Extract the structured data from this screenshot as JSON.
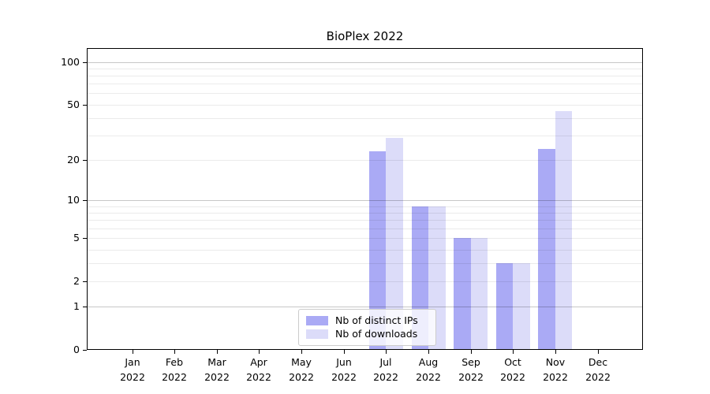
{
  "chart_data": {
    "type": "bar",
    "title": "BioPlex 2022",
    "categories": [
      "Jan 2022",
      "Feb 2022",
      "Mar 2022",
      "Apr 2022",
      "May 2022",
      "Jun 2022",
      "Jul 2022",
      "Aug 2022",
      "Sep 2022",
      "Oct 2022",
      "Nov 2022",
      "Dec 2022"
    ],
    "series": [
      {
        "name": "Nb of distinct IPs",
        "color": "#aaaaf5",
        "values": [
          0,
          0,
          0,
          0,
          0,
          0,
          23,
          9,
          5,
          3,
          24,
          0
        ]
      },
      {
        "name": "Nb of downloads",
        "color": "#dcdcf9",
        "values": [
          0,
          0,
          0,
          0,
          0,
          0,
          29,
          9,
          5,
          3,
          45,
          0
        ]
      }
    ],
    "yscale": "log1p",
    "ylim": [
      0,
      125
    ],
    "yticks": [
      0,
      1,
      2,
      5,
      10,
      20,
      50,
      100
    ],
    "major_gridlines": [
      1,
      10,
      100
    ],
    "minor_gridlines": [
      2,
      3,
      4,
      5,
      6,
      7,
      8,
      9,
      20,
      30,
      40,
      50,
      60,
      70,
      80,
      90
    ],
    "grid": true,
    "legend_position": "lower center",
    "xlabel": "",
    "ylabel": ""
  },
  "colors": {
    "background": "#ffffff",
    "spine": "#000000",
    "major_grid": "rgba(0,0,0,0.22)",
    "minor_grid": "rgba(0,0,0,0.08)",
    "text": "#000000",
    "legend_border": "#cccccc"
  }
}
